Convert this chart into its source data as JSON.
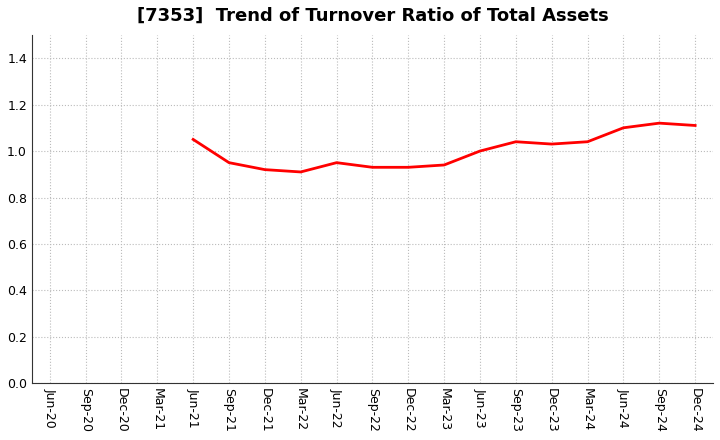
{
  "title": "[7353]  Trend of Turnover Ratio of Total Assets",
  "x_labels": [
    "Jun-20",
    "Sep-20",
    "Dec-20",
    "Mar-21",
    "Jun-21",
    "Sep-21",
    "Dec-21",
    "Mar-22",
    "Jun-22",
    "Sep-22",
    "Dec-22",
    "Mar-23",
    "Jun-23",
    "Sep-23",
    "Dec-23",
    "Mar-24",
    "Jun-24",
    "Sep-24",
    "Dec-24"
  ],
  "y_values": [
    null,
    null,
    null,
    null,
    1.05,
    0.95,
    0.92,
    0.91,
    0.95,
    0.93,
    0.93,
    0.94,
    1.0,
    1.04,
    1.03,
    1.04,
    1.1,
    1.12,
    1.11
  ],
  "ylim": [
    0.0,
    1.5
  ],
  "yticks": [
    0.0,
    0.2,
    0.4,
    0.6,
    0.8,
    1.0,
    1.2,
    1.4
  ],
  "line_color": "#ff0000",
  "line_width": 2.0,
  "background_color": "#ffffff",
  "grid_color": "#bbbbbb",
  "title_fontsize": 13,
  "tick_fontsize": 9
}
